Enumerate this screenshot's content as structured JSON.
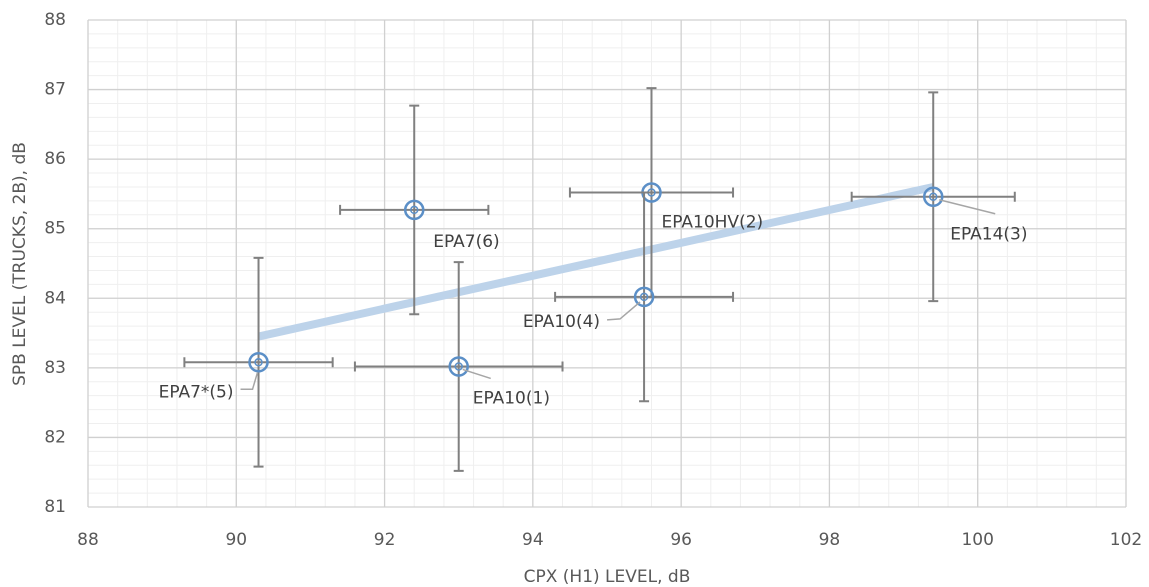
{
  "chart_data": {
    "type": "scatter",
    "x_label": "CPX (H1) LEVEL, dB",
    "y_label": "SPB LEVEL (TRUCKS, 2B), dB",
    "xlim": [
      88,
      102
    ],
    "xticks": [
      88,
      90,
      92,
      94,
      96,
      98,
      100,
      102
    ],
    "ylim": [
      81,
      88
    ],
    "yticks": [
      81,
      82,
      83,
      84,
      85,
      86,
      87,
      88
    ],
    "grid": true,
    "minor_grid": true,
    "xminor_step": 0.4,
    "yminor_step": 0.2,
    "points": {
      "labels": [
        "EPA10(1)",
        "EPA10HV(2)",
        "EPA14(3)",
        "EPA10(4)",
        "EPA7*(5)",
        "EPA7(6)"
      ],
      "x": [
        93.0,
        95.6,
        99.4,
        95.5,
        90.3,
        92.4
      ],
      "y": [
        83.02,
        85.52,
        85.46,
        84.02,
        83.08,
        85.27
      ],
      "xerr": [
        1.4,
        1.1,
        1.1,
        1.2,
        1.0,
        1.0
      ],
      "yerr": [
        1.5,
        1.5,
        1.5,
        1.5,
        1.5,
        1.5
      ],
      "color": "#5b8fc7",
      "error_color": "#808080"
    },
    "trendline": {
      "x": [
        90.3,
        99.4
      ],
      "y": [
        83.45,
        85.6
      ],
      "color": "#bdd3ea"
    }
  }
}
